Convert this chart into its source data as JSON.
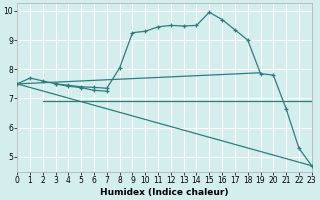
{
  "xlabel": "Humidex (Indice chaleur)",
  "bg_color": "#d4eeee",
  "grid_color": "#ffffff",
  "line_color": "#2d7d7d",
  "xlim": [
    0,
    23
  ],
  "ylim": [
    4.5,
    10.25
  ],
  "yticks": [
    5,
    6,
    7,
    8,
    9,
    10
  ],
  "xticks": [
    0,
    1,
    2,
    3,
    4,
    5,
    6,
    7,
    8,
    9,
    10,
    11,
    12,
    13,
    14,
    15,
    16,
    17,
    18,
    19,
    20,
    21,
    22,
    23
  ],
  "line1_x": [
    0,
    1,
    2,
    3,
    4,
    5,
    6,
    7,
    8,
    9,
    10,
    11,
    12,
    13,
    14,
    15,
    16,
    17,
    18,
    19,
    20,
    21,
    22,
    23
  ],
  "line1_y": [
    7.5,
    7.7,
    7.6,
    7.5,
    7.45,
    7.4,
    7.38,
    7.35,
    8.05,
    9.25,
    9.3,
    9.45,
    9.5,
    9.48,
    9.5,
    9.95,
    9.7,
    9.35,
    9.0,
    7.85,
    7.8,
    6.65,
    5.3,
    4.7
  ],
  "line2_x": [
    2,
    3,
    4,
    5,
    6,
    7,
    8,
    9,
    10,
    11,
    12,
    13,
    14,
    15,
    16,
    17,
    18,
    19,
    20,
    21,
    22,
    23
  ],
  "line2_y": [
    6.9,
    6.9,
    6.9,
    6.9,
    6.9,
    6.9,
    6.9,
    6.9,
    6.9,
    6.9,
    6.9,
    6.9,
    6.9,
    6.9,
    6.9,
    6.9,
    6.9,
    6.9,
    6.9,
    6.9,
    6.9,
    6.9
  ],
  "line3_x": [
    0,
    1,
    2,
    3,
    4,
    5,
    6,
    7,
    8,
    9,
    10,
    11,
    12,
    13,
    14,
    15,
    16,
    17,
    18,
    19
  ],
  "line3_y": [
    7.5,
    7.52,
    7.54,
    7.56,
    7.58,
    7.6,
    7.62,
    7.64,
    7.66,
    7.68,
    7.7,
    7.72,
    7.74,
    7.76,
    7.78,
    7.8,
    7.82,
    7.84,
    7.86,
    7.88
  ],
  "line3b_x": [
    3,
    4,
    5,
    6,
    7
  ],
  "line3b_y": [
    7.5,
    7.42,
    7.37,
    7.28,
    7.25
  ],
  "line4_x": [
    0,
    23
  ],
  "line4_y": [
    7.5,
    4.7
  ]
}
